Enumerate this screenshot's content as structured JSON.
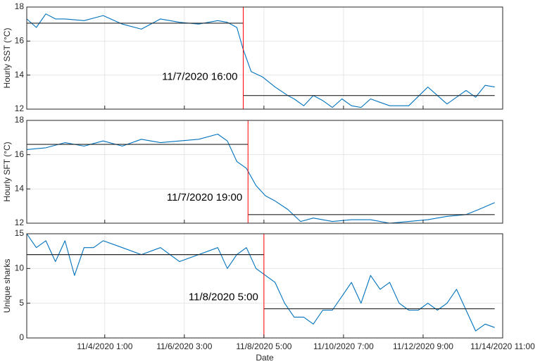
{
  "chart_data": {
    "type": "line",
    "xlabel": "Date",
    "x_range": [
      "11/2/2020 00:00",
      "11/14/2020 11:00"
    ],
    "x_ticks": [
      "11/4/2020 1:00",
      "11/6/2020 3:00",
      "11/8/2020 5:00",
      "11/10/2020 7:00",
      "11/12/2020 9:00",
      "11/14/2020 11:00"
    ],
    "grid": true,
    "colors": {
      "series": "#0072BD",
      "mean": "#262626",
      "change_point": "#FF0000",
      "axis": "#262626",
      "grid": "#e6e6e6"
    },
    "panels": [
      {
        "ylabel": "Hourly SST (°C)",
        "ylim": [
          12,
          18
        ],
        "yticks": [
          "12",
          "14",
          "16",
          "18"
        ],
        "change_point": "11/7/2020 16:00",
        "change_label": "11/7/2020 16:00",
        "mean_before": 17.05,
        "mean_after": 12.8,
        "series": {
          "x": [
            "11/2/2020 00:00",
            "11/2/2020 06:00",
            "11/2/2020 12:00",
            "11/2/2020 18:00",
            "11/3/2020 00:00",
            "11/3/2020 12:00",
            "11/4/2020 00:00",
            "11/4/2020 12:00",
            "11/5/2020 00:00",
            "11/5/2020 12:00",
            "11/6/2020 00:00",
            "11/6/2020 12:00",
            "11/7/2020 00:00",
            "11/7/2020 06:00",
            "11/7/2020 12:00",
            "11/7/2020 16:00",
            "11/7/2020 21:00",
            "11/8/2020 04:00",
            "11/8/2020 12:00",
            "11/8/2020 20:00",
            "11/9/2020 00:00",
            "11/9/2020 06:00",
            "11/9/2020 12:00",
            "11/9/2020 18:00",
            "11/10/2020 00:00",
            "11/10/2020 06:00",
            "11/10/2020 12:00",
            "11/10/2020 18:00",
            "11/11/2020 00:00",
            "11/11/2020 12:00",
            "11/12/2020 00:00",
            "11/12/2020 12:00",
            "11/13/2020 00:00",
            "11/13/2020 12:00",
            "11/13/2020 18:00",
            "11/14/2020 00:00",
            "11/14/2020 06:00"
          ],
          "y": [
            17.3,
            16.8,
            17.6,
            17.3,
            17.3,
            17.2,
            17.5,
            17.0,
            16.7,
            17.3,
            17.1,
            17.0,
            17.2,
            17.1,
            16.8,
            15.5,
            14.2,
            13.9,
            13.3,
            12.8,
            12.6,
            12.2,
            12.8,
            12.5,
            12.1,
            12.6,
            12.2,
            12.1,
            12.6,
            12.2,
            12.2,
            13.3,
            12.3,
            13.1,
            12.7,
            13.4,
            13.3
          ]
        }
      },
      {
        "ylabel": "Hourly SFT (°C)",
        "ylim": [
          12,
          18
        ],
        "yticks": [
          "12",
          "14",
          "16",
          "18"
        ],
        "change_point": "11/7/2020 19:00",
        "change_label": "11/7/2020 19:00",
        "mean_before": 16.6,
        "mean_after": 12.5,
        "series": {
          "x": [
            "11/2/2020 00:00",
            "11/2/2020 12:00",
            "11/3/2020 00:00",
            "11/3/2020 12:00",
            "11/4/2020 00:00",
            "11/4/2020 12:00",
            "11/5/2020 00:00",
            "11/5/2020 12:00",
            "11/6/2020 00:00",
            "11/6/2020 12:00",
            "11/7/2020 00:00",
            "11/7/2020 06:00",
            "11/7/2020 12:00",
            "11/7/2020 18:00",
            "11/8/2020 00:00",
            "11/8/2020 06:00",
            "11/8/2020 12:00",
            "11/8/2020 20:00",
            "11/9/2020 04:00",
            "11/9/2020 12:00",
            "11/10/2020 00:00",
            "11/10/2020 12:00",
            "11/11/2020 00:00",
            "11/11/2020 12:00",
            "11/12/2020 00:00",
            "11/12/2020 12:00",
            "11/13/2020 00:00",
            "11/13/2020 12:00",
            "11/13/2020 20:00",
            "11/14/2020 06:00"
          ],
          "y": [
            16.3,
            16.4,
            16.7,
            16.5,
            16.8,
            16.5,
            16.9,
            16.7,
            16.8,
            16.9,
            17.2,
            16.8,
            15.6,
            15.2,
            14.2,
            13.6,
            13.3,
            12.8,
            12.1,
            12.3,
            12.1,
            12.2,
            12.2,
            12.0,
            12.1,
            12.2,
            12.4,
            12.5,
            12.8,
            13.2
          ]
        }
      },
      {
        "ylabel": "Unique sharks",
        "ylim": [
          0,
          15
        ],
        "yticks": [
          "0",
          "5",
          "10",
          "15"
        ],
        "change_point": "11/8/2020 5:00",
        "change_label": "11/8/2020 5:00",
        "mean_before": 12,
        "mean_after": 4.2,
        "series": {
          "x": [
            "11/2/2020 00:00",
            "11/2/2020 06:00",
            "11/2/2020 12:00",
            "11/2/2020 18:00",
            "11/3/2020 00:00",
            "11/3/2020 06:00",
            "11/3/2020 12:00",
            "11/3/2020 18:00",
            "11/4/2020 00:00",
            "11/4/2020 12:00",
            "11/5/2020 00:00",
            "11/5/2020 12:00",
            "11/6/2020 00:00",
            "11/6/2020 12:00",
            "11/7/2020 00:00",
            "11/7/2020 06:00",
            "11/7/2020 12:00",
            "11/7/2020 18:00",
            "11/8/2020 00:00",
            "11/8/2020 06:00",
            "11/8/2020 12:00",
            "11/8/2020 18:00",
            "11/9/2020 00:00",
            "11/9/2020 06:00",
            "11/9/2020 12:00",
            "11/9/2020 18:00",
            "11/10/2020 00:00",
            "11/10/2020 06:00",
            "11/10/2020 12:00",
            "11/10/2020 18:00",
            "11/11/2020 00:00",
            "11/11/2020 06:00",
            "11/11/2020 12:00",
            "11/11/2020 18:00",
            "11/12/2020 00:00",
            "11/12/2020 06:00",
            "11/12/2020 12:00",
            "11/12/2020 18:00",
            "11/13/2020 00:00",
            "11/13/2020 06:00",
            "11/13/2020 12:00",
            "11/13/2020 18:00",
            "11/14/2020 00:00",
            "11/14/2020 06:00"
          ],
          "y": [
            15,
            13,
            14,
            11,
            14,
            9,
            13,
            13,
            14,
            13,
            12,
            13,
            11,
            12,
            13,
            10,
            12,
            13,
            10,
            9,
            8,
            5,
            3,
            3,
            2,
            4,
            4,
            6,
            8,
            5,
            9,
            7,
            8,
            5,
            4,
            4,
            5,
            4,
            5,
            7,
            4,
            1,
            2,
            1.5
          ]
        }
      }
    ]
  }
}
